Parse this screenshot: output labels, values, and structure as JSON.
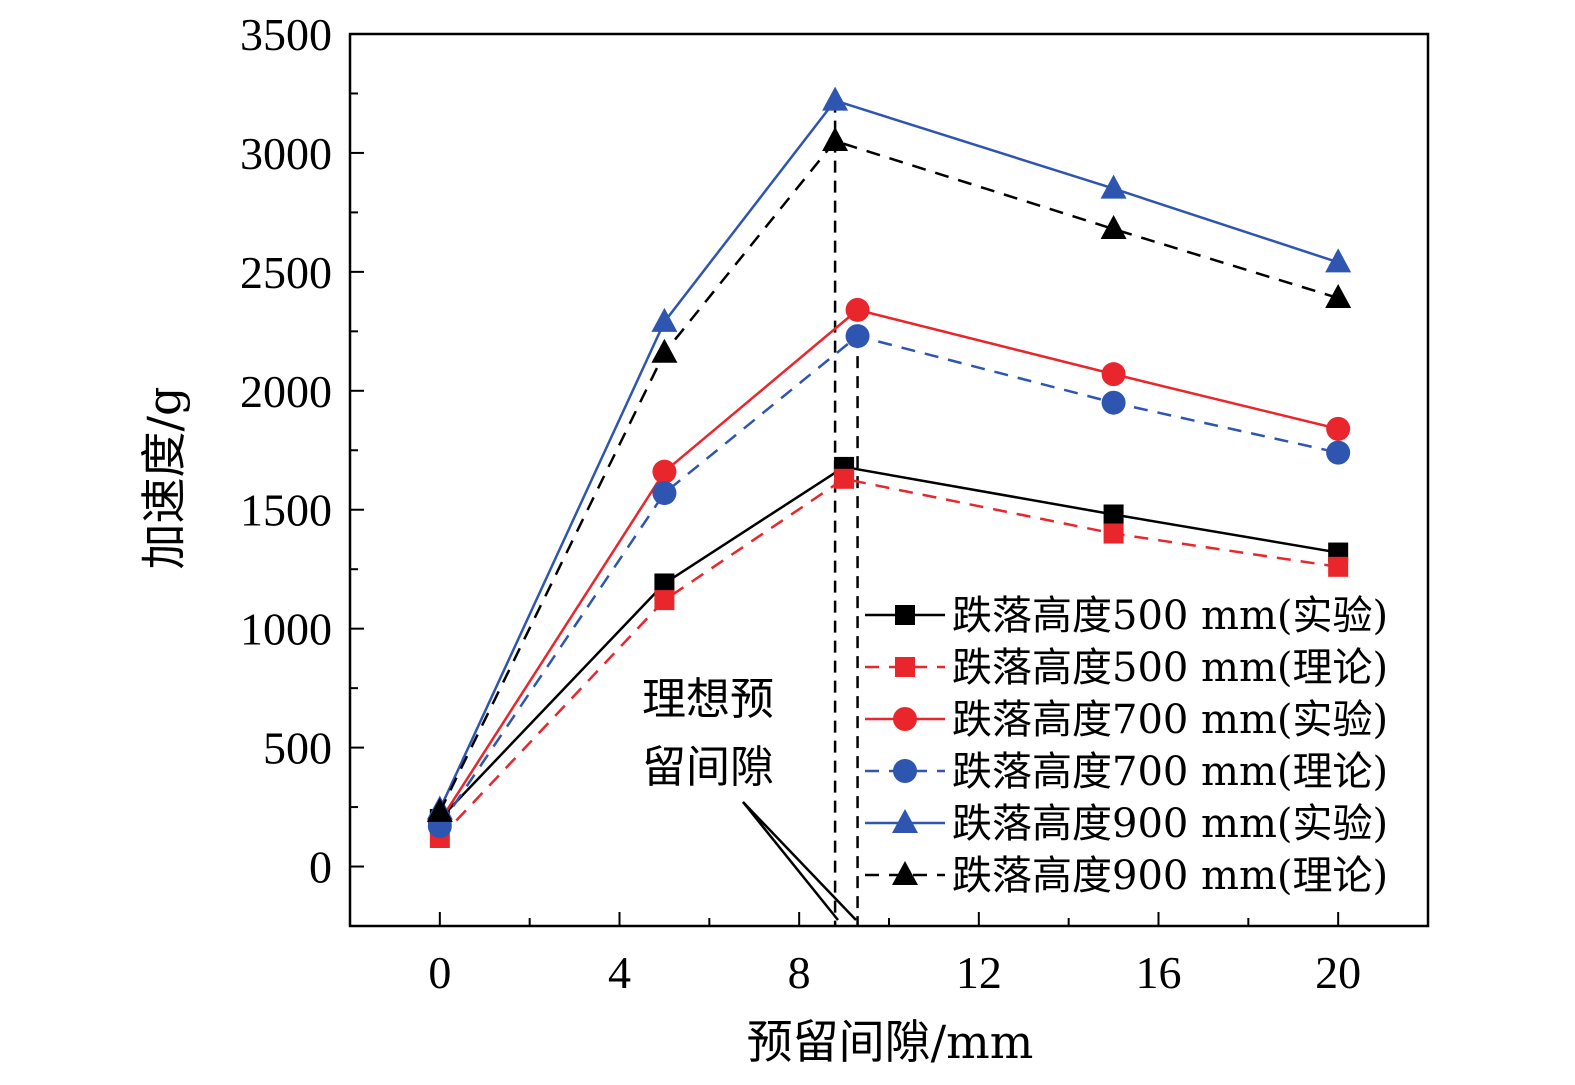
{
  "chart_data": {
    "type": "line",
    "xlabel": "预留间隙/mm",
    "ylabel": "加速度/g",
    "xlim": [
      -2,
      22
    ],
    "ylim": [
      -250,
      3500
    ],
    "xticks": [
      0,
      4,
      8,
      12,
      16,
      20
    ],
    "yticks": [
      0,
      500,
      1000,
      1500,
      2000,
      2500,
      3000,
      3500
    ],
    "grid": false,
    "legend_position": "bottom-right",
    "series": [
      {
        "name": "跌落高度500 mm(实验)",
        "color": "#000000",
        "dash": "solid",
        "marker": "square",
        "x": [
          0,
          5,
          9,
          15,
          20
        ],
        "y": [
          200,
          1190,
          1680,
          1480,
          1320
        ]
      },
      {
        "name": "跌落高度500 mm(理论)",
        "color": "#e8262c",
        "dash": "dashed",
        "marker": "square",
        "x": [
          0,
          5,
          9,
          15,
          20
        ],
        "y": [
          120,
          1120,
          1630,
          1400,
          1260
        ]
      },
      {
        "name": "跌落高度700 mm(实验)",
        "color": "#e8262c",
        "dash": "solid",
        "marker": "circle",
        "x": [
          0,
          5,
          9.3,
          15,
          20
        ],
        "y": [
          190,
          1660,
          2340,
          2070,
          1840
        ]
      },
      {
        "name": "跌落高度700 mm(理论)",
        "color": "#2e55b0",
        "dash": "dashed",
        "marker": "circle",
        "x": [
          0,
          5,
          9.3,
          15,
          20
        ],
        "y": [
          170,
          1570,
          2230,
          1950,
          1740
        ]
      },
      {
        "name": "跌落高度900 mm(实验)",
        "color": "#2e55b0",
        "dash": "solid",
        "marker": "triangle",
        "x": [
          0,
          5,
          8.8,
          15,
          20
        ],
        "y": [
          240,
          2290,
          3220,
          2850,
          2540
        ]
      },
      {
        "name": "跌落高度900 mm(理论)",
        "color": "#000000",
        "dash": "dashed",
        "marker": "triangle",
        "x": [
          0,
          5,
          8.8,
          15,
          20
        ],
        "y": [
          230,
          2160,
          3050,
          2680,
          2390
        ]
      }
    ],
    "reference_lines": [
      {
        "x": 8.8,
        "y_top": 3220
      },
      {
        "x": 9.3,
        "y_top": 2230
      }
    ],
    "annotation": {
      "text_line1": "理想预",
      "text_line2": "留间隙"
    }
  }
}
